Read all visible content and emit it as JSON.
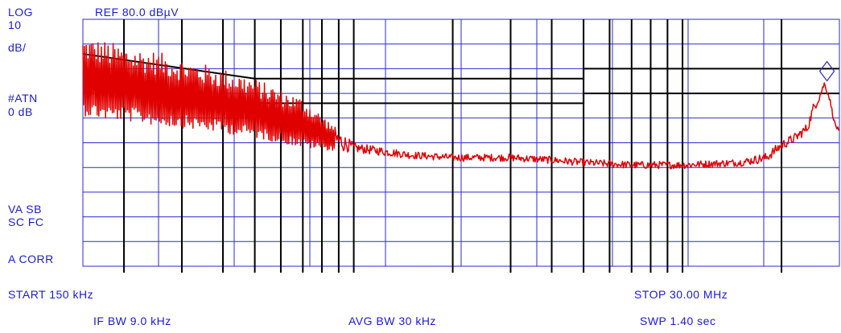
{
  "left_labels": {
    "log": "LOG",
    "scale_value": "10",
    "scale_unit": "dB/",
    "atten_label": "#ATN",
    "atten_value": "0 dB",
    "vasb": "VA SB",
    "scfc": "SC FC",
    "acorr": "A CORR"
  },
  "ref_level": "REF 80.0 dBµV",
  "footer": {
    "start": "START 150 kHz",
    "stop": "STOP 30.00 MHz",
    "if_bw": "IF BW 9.0 kHz",
    "avg_bw": "AVG BW 30 kHz",
    "sweep": "SWP 1.40 sec"
  },
  "colors": {
    "grid_blue": "#2a2ad0",
    "trace_red": "#e00000",
    "limit_black": "#000000",
    "text_blue": "#1a1ad6"
  },
  "chart_data": {
    "type": "line",
    "title": "",
    "x_scale": "log",
    "xlim_mhz": [
      0.15,
      30
    ],
    "ylim_db": [
      -20,
      80
    ],
    "y_div_db": 10,
    "grid": true,
    "limit_lines": [
      {
        "x_mhz": [
          0.15,
          0.5,
          5,
          5,
          30
        ],
        "y_db": [
          66,
          56,
          56,
          60,
          60
        ]
      },
      {
        "x_mhz": [
          0.15,
          0.5,
          5,
          5,
          30
        ],
        "y_db": [
          56,
          46,
          46,
          50,
          50
        ]
      }
    ],
    "trace": {
      "x_mhz": [
        0.15,
        0.18,
        0.2,
        0.25,
        0.3,
        0.4,
        0.5,
        0.7,
        1.0,
        1.5,
        2,
        3,
        4,
        5,
        7,
        10,
        15,
        18,
        20,
        22,
        24,
        25,
        26,
        27,
        28,
        29,
        30
      ],
      "y_db": [
        57,
        55,
        54,
        52,
        50,
        47,
        44,
        38,
        28,
        25,
        24,
        24,
        23,
        22,
        21,
        21,
        22,
        24,
        29,
        32,
        36,
        44,
        48,
        54,
        48,
        38,
        34
      ],
      "ripple_db": [
        16,
        16,
        15,
        15,
        14,
        13,
        12,
        10,
        2,
        1.5,
        1.5,
        1.5,
        1.5,
        1.5,
        1.5,
        1.5,
        1.5,
        2,
        2,
        2,
        2,
        2,
        1.5,
        1,
        1,
        1,
        1
      ]
    },
    "marker": {
      "x_mhz": 27.5,
      "y_db": 59,
      "symbol": "diamond"
    },
    "tick_marks_mhz": [
      0.15,
      0.2,
      0.3,
      0.4,
      0.5,
      0.6,
      0.7,
      0.8,
      0.9,
      1,
      2,
      3,
      4,
      5,
      6,
      7,
      8,
      9,
      10,
      20,
      30
    ]
  }
}
